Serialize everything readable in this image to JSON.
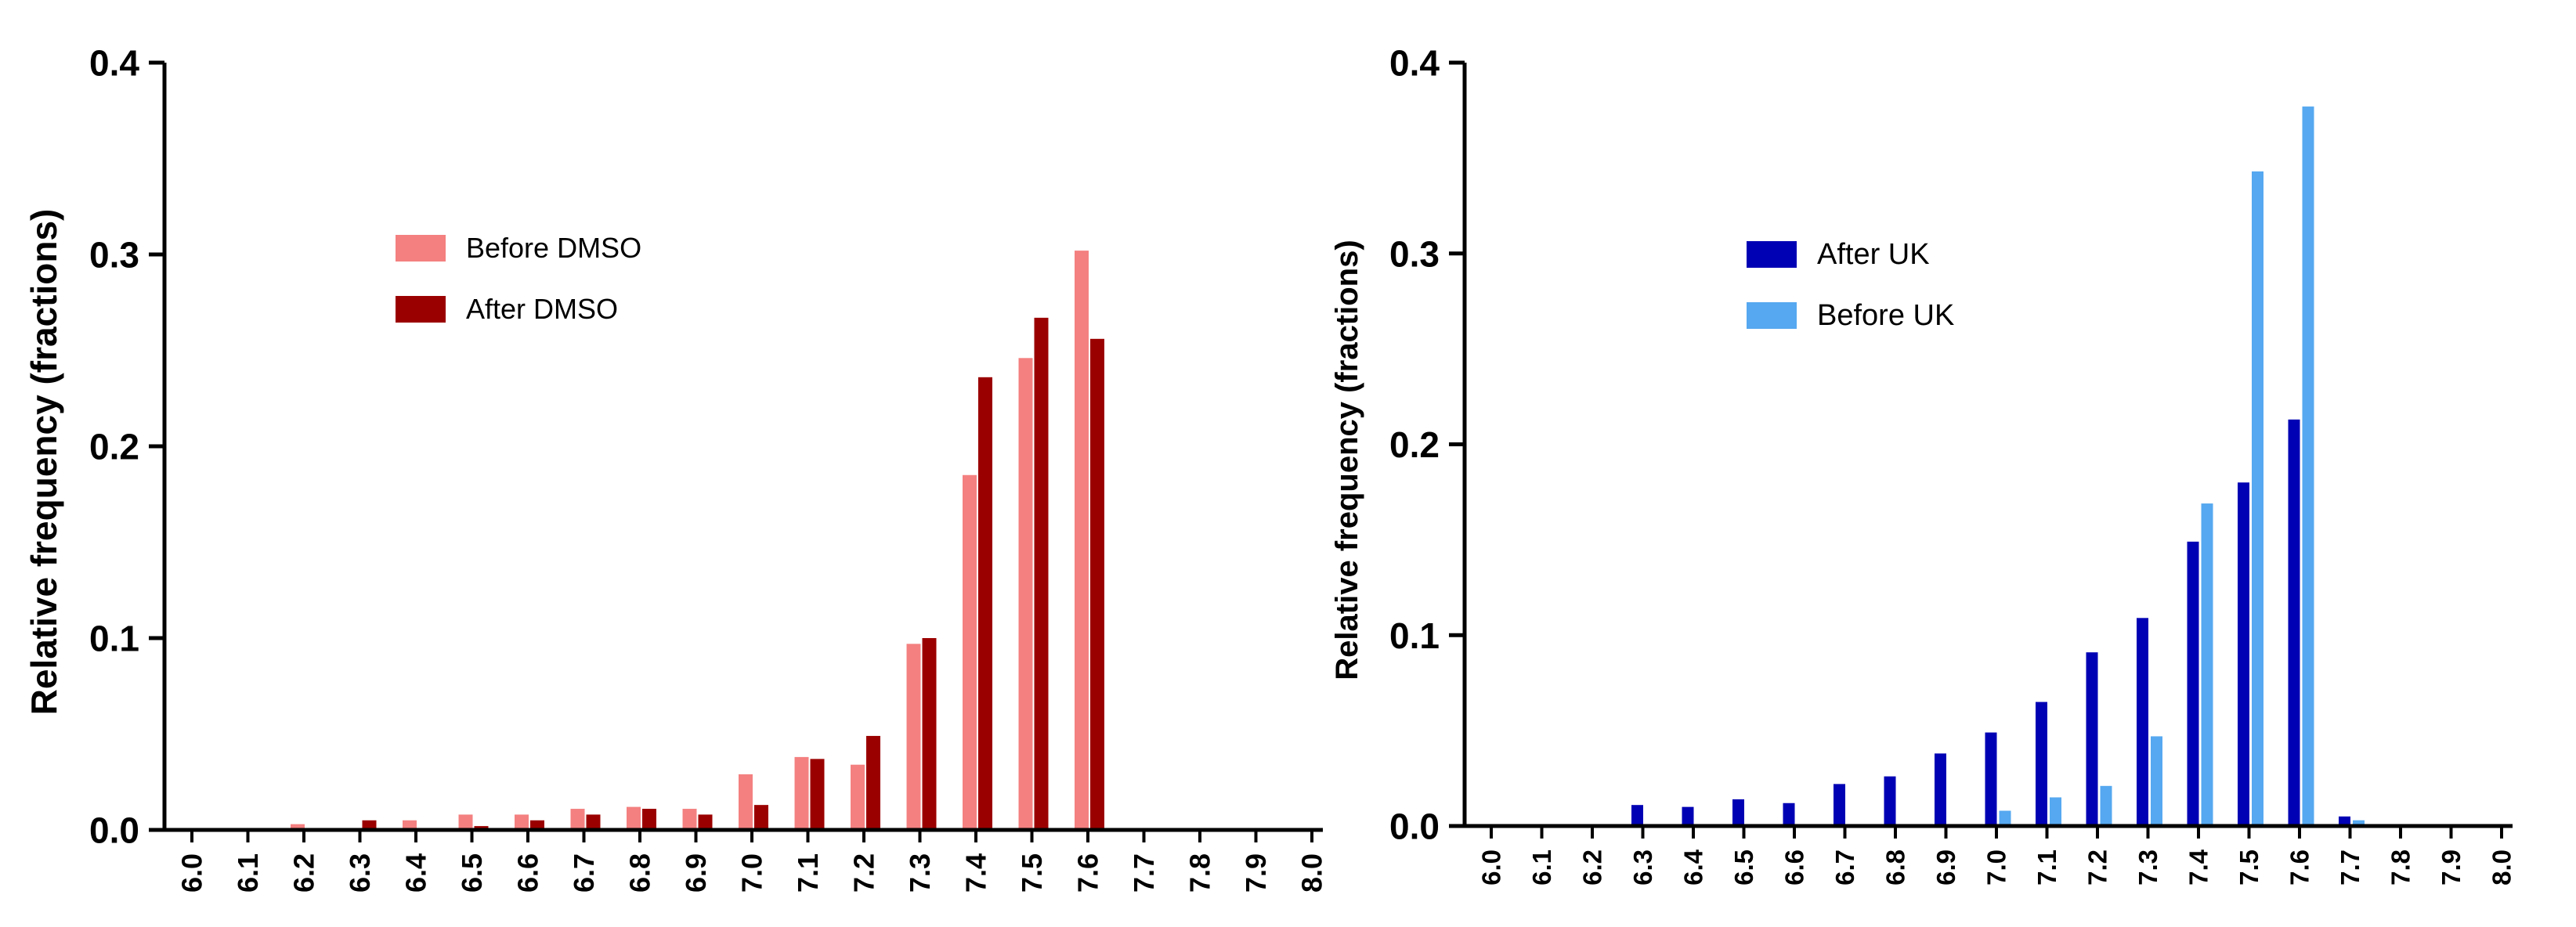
{
  "chart_data": [
    {
      "type": "bar",
      "title": "",
      "xlabel": "",
      "ylabel": "Relative frequency (fractions)",
      "ylim": [
        0,
        0.4
      ],
      "yticks": [
        "0.0",
        "0.1",
        "0.2",
        "0.3",
        "0.4"
      ],
      "grid": false,
      "legend_position": "upper-middle",
      "categories": [
        "6.0",
        "6.1",
        "6.2",
        "6.3",
        "6.4",
        "6.5",
        "6.6",
        "6.7",
        "6.8",
        "6.9",
        "7.0",
        "7.1",
        "7.2",
        "7.3",
        "7.4",
        "7.5",
        "7.6",
        "7.7",
        "7.8",
        "7.9",
        "8.0"
      ],
      "series": [
        {
          "name": "Before DMSO",
          "color": "#f48080",
          "values": [
            0,
            0,
            0.003,
            0,
            0.005,
            0.008,
            0.008,
            0.011,
            0.012,
            0.011,
            0.029,
            0.038,
            0.034,
            0.097,
            0.185,
            0.246,
            0.302,
            0,
            0,
            0,
            0
          ]
        },
        {
          "name": "After DMSO",
          "color": "#9b0000",
          "values": [
            0,
            0,
            0,
            0.005,
            0,
            0.002,
            0.005,
            0.008,
            0.011,
            0.008,
            0.013,
            0.037,
            0.049,
            0.1,
            0.236,
            0.267,
            0.256,
            0,
            0,
            0,
            0
          ]
        }
      ]
    },
    {
      "type": "bar",
      "title": "",
      "xlabel": "",
      "ylabel": "Relative frequency (fractions)",
      "ylim": [
        0,
        0.4
      ],
      "yticks": [
        "0.0",
        "0.1",
        "0.2",
        "0.3",
        "0.4"
      ],
      "grid": false,
      "legend_position": "upper-middle",
      "categories": [
        "6.0",
        "6.1",
        "6.2",
        "6.3",
        "6.4",
        "6.5",
        "6.6",
        "6.7",
        "6.8",
        "6.9",
        "7.0",
        "7.1",
        "7.2",
        "7.3",
        "7.4",
        "7.5",
        "7.6",
        "7.7",
        "7.8",
        "7.9",
        "8.0"
      ],
      "series": [
        {
          "name": "After UK",
          "color": "#0000b4",
          "values": [
            0,
            0,
            0,
            0.011,
            0.01,
            0.014,
            0.012,
            0.022,
            0.026,
            0.038,
            0.049,
            0.065,
            0.091,
            0.109,
            0.149,
            0.18,
            0.213,
            0.005,
            0,
            0,
            0
          ]
        },
        {
          "name": "Before UK",
          "color": "#56a8f0",
          "values": [
            0,
            0,
            0,
            0,
            0,
            0,
            0,
            0,
            0,
            0,
            0.008,
            0.015,
            0.021,
            0.047,
            0.169,
            0.343,
            0.377,
            0.003,
            0,
            0,
            0
          ]
        }
      ]
    }
  ]
}
